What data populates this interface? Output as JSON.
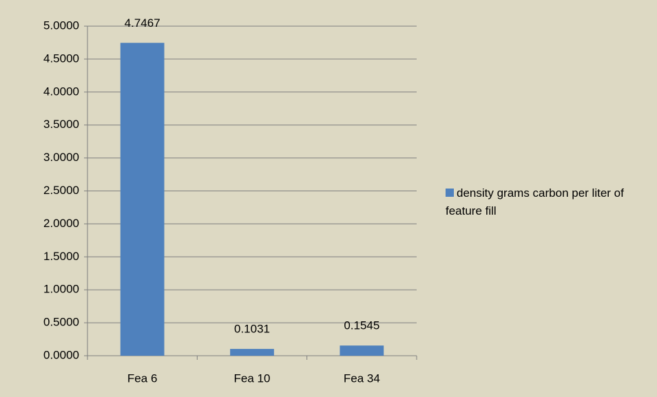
{
  "chart_data": {
    "type": "bar",
    "categories": [
      "Fea 6",
      "Fea 10",
      "Fea 34"
    ],
    "series": [
      {
        "name": "density grams carbon per liter of feature fill",
        "color": "#4f81bd",
        "values": [
          4.7467,
          0.1031,
          0.1545
        ]
      }
    ],
    "ylim": [
      0,
      5
    ],
    "yticks": [
      {
        "value": 0,
        "label": "0.0000"
      },
      {
        "value": 0.5,
        "label": "0.5000"
      },
      {
        "value": 1,
        "label": "1.0000"
      },
      {
        "value": 1.5,
        "label": "1.5000"
      },
      {
        "value": 2,
        "label": "2.0000"
      },
      {
        "value": 2.5,
        "label": "2.5000"
      },
      {
        "value": 3,
        "label": "3.0000"
      },
      {
        "value": 3.5,
        "label": "3.5000"
      },
      {
        "value": 4,
        "label": "4.0000"
      },
      {
        "value": 4.5,
        "label": "4.5000"
      },
      {
        "value": 5,
        "label": "5.0000"
      }
    ],
    "grid": true,
    "legend": "right"
  }
}
